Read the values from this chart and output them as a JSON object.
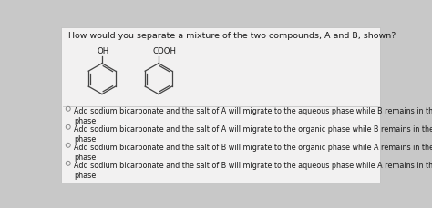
{
  "background_color": "#c8c8c8",
  "inner_bg": "#f2f1f1",
  "title": "How would you separate a mixture of the two compounds, A and B, shown?",
  "title_fontsize": 6.8,
  "compound_a_label": "OH",
  "compound_b_label": "COOH",
  "options": [
    "Add sodium bicarbonate and the salt of A will migrate to the aqueous phase while B remains in the organic\nphase",
    "Add sodium bicarbonate and the salt of A will migrate to the organic phase while B remains in the aqueous\nphase",
    "Add sodium bicarbonate and the salt of B will migrate to the organic phase while A remains in the aqueous\nphase",
    "Add sodium bicarbonate and the salt of B will migrate to the aqueous phase while A remains in the organic\nphase"
  ],
  "option_fontsize": 5.8,
  "radio_color": "#888888",
  "text_color": "#1a1a1a",
  "divider_color": "#bbbbbb",
  "struct_area_bg": "#e8e7e7"
}
